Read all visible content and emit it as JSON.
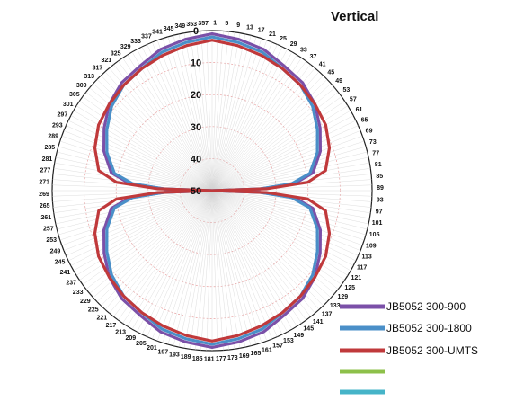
{
  "chart_data": {
    "type": "polar-line",
    "title": "Vertical",
    "angle_ticks": [
      "1",
      "5",
      "9",
      "13",
      "17",
      "21",
      "25",
      "29",
      "33",
      "37",
      "41",
      "45",
      "49",
      "53",
      "57",
      "61",
      "65",
      "69",
      "73",
      "77",
      "81",
      "85",
      "89",
      "93",
      "97",
      "101",
      "105",
      "109",
      "113",
      "117",
      "121",
      "125",
      "129",
      "133",
      "137",
      "141",
      "145",
      "149",
      "153",
      "157",
      "161",
      "165",
      "169",
      "173",
      "177",
      "181",
      "185",
      "189",
      "193",
      "197",
      "201",
      "205",
      "209",
      "213",
      "217",
      "221",
      "225",
      "229",
      "233",
      "237",
      "241",
      "245",
      "249",
      "253",
      "257",
      "261",
      "265",
      "269",
      "273",
      "277",
      "281",
      "285",
      "289",
      "293",
      "297",
      "301",
      "305",
      "309",
      "313",
      "317",
      "321",
      "325",
      "329",
      "333",
      "337",
      "341",
      "345",
      "349",
      "353",
      "357"
    ],
    "radial_ticks": [
      "0",
      "10",
      "20",
      "30",
      "40",
      "50"
    ],
    "radial_range": [
      0,
      50
    ],
    "radial_direction": "inward",
    "grid": true,
    "legend_position": "bottom-right",
    "series": [
      {
        "name": "JB5052 300-900",
        "color": "#7b50a8",
        "angles": [
          0,
          10,
          20,
          30,
          40,
          50,
          60,
          70,
          80,
          85,
          88,
          90,
          92,
          95,
          100,
          110,
          120,
          130,
          140,
          150,
          160,
          170,
          180
        ],
        "values": [
          1,
          2,
          3,
          5,
          6,
          8,
          11,
          14,
          18,
          24,
          35,
          50,
          35,
          24,
          18,
          14,
          11,
          8,
          6,
          5,
          3,
          2,
          1
        ]
      },
      {
        "name": "JB5052 300-1800",
        "color": "#4a8fc8",
        "angles": [
          0,
          10,
          20,
          30,
          40,
          50,
          60,
          70,
          80,
          85,
          88,
          90,
          92,
          95,
          100,
          110,
          120,
          130,
          140,
          150,
          160,
          170,
          180
        ],
        "values": [
          2,
          3,
          4,
          6,
          7,
          9,
          12,
          15,
          19,
          25,
          35,
          50,
          35,
          25,
          19,
          15,
          12,
          9,
          7,
          6,
          4,
          3,
          2
        ]
      },
      {
        "name": "JB5052 300-UMTS",
        "color": "#c0393b",
        "angles": [
          0,
          10,
          20,
          30,
          40,
          50,
          60,
          70,
          80,
          85,
          88,
          90,
          92,
          95,
          100,
          110,
          120,
          130,
          140,
          150,
          160,
          170,
          180
        ],
        "values": [
          3,
          4,
          5,
          6,
          7,
          8,
          9,
          11,
          14,
          20,
          33,
          50,
          33,
          20,
          14,
          11,
          9,
          8,
          7,
          6,
          5,
          4,
          3
        ]
      },
      {
        "name": "",
        "color": "#8dc04a",
        "angles": [],
        "values": []
      },
      {
        "name": "",
        "color": "#46b4c8",
        "angles": [],
        "values": []
      }
    ]
  }
}
